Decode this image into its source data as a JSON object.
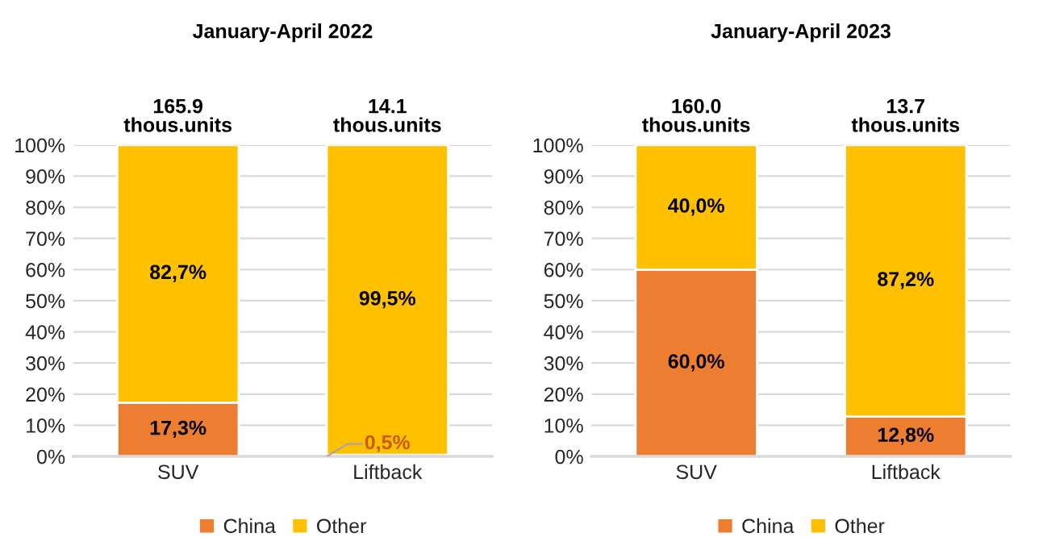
{
  "chart_data": [
    {
      "type": "bar",
      "title": "January-April 2022",
      "stacked": true,
      "categories": [
        "SUV",
        "Liftback"
      ],
      "series": [
        {
          "name": "China",
          "color": "#ed7d31",
          "values": [
            17.3,
            0.5
          ],
          "value_labels": [
            "17,3%",
            "0,5%"
          ]
        },
        {
          "name": "Other",
          "color": "#ffc000",
          "values": [
            82.7,
            99.5
          ],
          "value_labels": [
            "82,7%",
            "99,5%"
          ]
        }
      ],
      "annotations": [
        {
          "text": "165.9\nthous.units",
          "x": "SUV",
          "y": 100
        },
        {
          "text": "14.1\nthous.units",
          "x": "Liftback",
          "y": 100
        }
      ],
      "ylim": [
        0,
        100
      ],
      "yticks": [
        {
          "value": 0,
          "label": "0%"
        },
        {
          "value": 10,
          "label": "10%"
        },
        {
          "value": 20,
          "label": "20%"
        },
        {
          "value": 30,
          "label": "30%"
        },
        {
          "value": 40,
          "label": "40%"
        },
        {
          "value": 50,
          "label": "50%"
        },
        {
          "value": 60,
          "label": "60%"
        },
        {
          "value": 70,
          "label": "70%"
        },
        {
          "value": 80,
          "label": "80%"
        },
        {
          "value": 90,
          "label": "90%"
        },
        {
          "value": 100,
          "label": "100%"
        }
      ],
      "grid": "y",
      "legend": "bottom"
    },
    {
      "type": "bar",
      "title": "January-April 2023",
      "stacked": true,
      "categories": [
        "SUV",
        "Liftback"
      ],
      "series": [
        {
          "name": "China",
          "color": "#ed7d31",
          "values": [
            60.0,
            12.8
          ],
          "value_labels": [
            "60,0%",
            "12,8%"
          ]
        },
        {
          "name": "Other",
          "color": "#ffc000",
          "values": [
            40.0,
            87.2
          ],
          "value_labels": [
            "40,0%",
            "87,2%"
          ]
        }
      ],
      "annotations": [
        {
          "text": "160.0\nthous.units",
          "x": "SUV",
          "y": 100
        },
        {
          "text": "13.7\nthous.units",
          "x": "Liftback",
          "y": 100
        }
      ],
      "ylim": [
        0,
        100
      ],
      "yticks": [
        {
          "value": 0,
          "label": "0%"
        },
        {
          "value": 10,
          "label": "10%"
        },
        {
          "value": 20,
          "label": "20%"
        },
        {
          "value": 30,
          "label": "30%"
        },
        {
          "value": 40,
          "label": "40%"
        },
        {
          "value": 50,
          "label": "50%"
        },
        {
          "value": 60,
          "label": "60%"
        },
        {
          "value": 70,
          "label": "70%"
        },
        {
          "value": 80,
          "label": "80%"
        },
        {
          "value": 90,
          "label": "90%"
        },
        {
          "value": 100,
          "label": "100%"
        }
      ],
      "grid": "y",
      "legend": "bottom"
    }
  ]
}
